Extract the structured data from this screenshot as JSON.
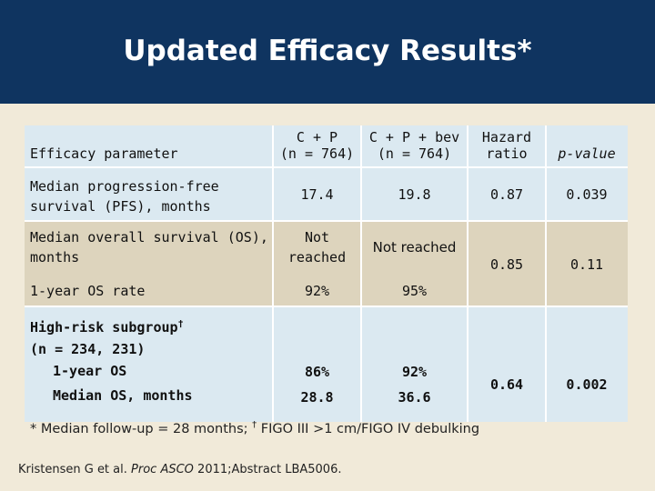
{
  "header": {
    "title": "Updated Efficacy Results*"
  },
  "table": {
    "columns": {
      "parameter": "Efficacy parameter",
      "cp": [
        "C + P",
        "(n = 764)"
      ],
      "cpbev": [
        "C + P + bev",
        "(n = 764)"
      ],
      "hr": [
        "Hazard",
        "ratio"
      ],
      "pvalue": "p-value"
    },
    "pfs": {
      "label": [
        "Median progression-free",
        "survival (PFS), months"
      ],
      "cp": "17.4",
      "cpbev": "19.8",
      "hr": "0.87",
      "p": "0.039"
    },
    "os": {
      "label": [
        "Median overall survival (OS),",
        "months"
      ],
      "cp": [
        "Not",
        "reached"
      ],
      "cpbev": "Not reached",
      "hr": "0.85",
      "p": "0.11"
    },
    "os1yr": {
      "label": "1-year OS rate",
      "cp": "92%",
      "cpbev": "95%"
    },
    "highrisk": {
      "label": [
        "High-risk subgroup",
        "(n = 234, 231)"
      ],
      "dagger": "†",
      "row1": {
        "label": "1-year OS",
        "cp": "86%",
        "cpbev": "92%"
      },
      "row2": {
        "label": "Median OS, months",
        "cp": "28.8",
        "cpbev": "36.6"
      },
      "hr": "0.64",
      "p": "0.002"
    }
  },
  "footnote": {
    "star": "* Median follow-up = 28 months;",
    "dagger": "†",
    "dagger_text": "FIGO III >1 cm/FIGO IV debulking"
  },
  "reference": {
    "authors": "Kristensen G et al.",
    "journal": "Proc ASCO",
    "rest": "2011;Abstract LBA5006."
  },
  "colors": {
    "header_bg": "#0f3460",
    "cell_blue": "#dbe9f1",
    "cell_tan": "#ddd4bd",
    "page_bg": "#f1ead9"
  }
}
